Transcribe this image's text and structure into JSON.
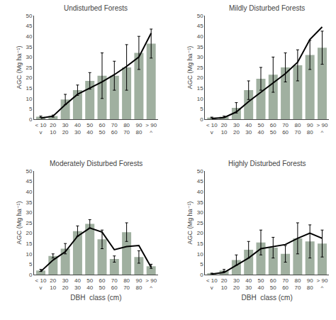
{
  "chart_data": [
    {
      "type": "bar",
      "title": "Undisturbed Forests",
      "categories": [
        "< 10\nv",
        "20\n10",
        "30\n20",
        "40\n30",
        "50\n40",
        "60\n50",
        "70\n60",
        "80\n70",
        "90\n80",
        "> 90\n^"
      ],
      "series": [
        {
          "type": "bar",
          "color": "#a0b0a0",
          "values": [
            1.2,
            1.5,
            9.5,
            14.0,
            18.5,
            21.0,
            21.0,
            25.0,
            32.0,
            36.5
          ],
          "errors": [
            0.3,
            0.5,
            2.5,
            2.5,
            4.0,
            11.0,
            7.0,
            11.0,
            8.0,
            7.0
          ]
        },
        {
          "type": "line",
          "color": "black",
          "values": [
            0.5,
            1.5,
            7.0,
            12.0,
            15.0,
            18.0,
            21.5,
            25.5,
            30.0,
            41.5
          ]
        }
      ],
      "ylabel": "AGC (Mg ha⁻¹)",
      "ylim": [
        0,
        50
      ],
      "yticks": [
        0,
        5,
        10,
        15,
        20,
        25,
        30,
        35,
        40,
        45,
        50
      ],
      "grid": false
    },
    {
      "type": "bar",
      "title": "Mildly Disturbed Forests",
      "categories": [
        "< 10\nv",
        "20\n10",
        "30\n20",
        "40\n30",
        "50\n40",
        "60\n50",
        "70\n60",
        "80\n70",
        "90\n80",
        "> 90\n^"
      ],
      "series": [
        {
          "type": "bar",
          "color": "#a0b0a0",
          "values": [
            0.8,
            1.2,
            5.5,
            14.0,
            19.5,
            21.5,
            25.0,
            26.0,
            31.0,
            34.5
          ],
          "errors": [
            0.2,
            0.3,
            2.5,
            4.5,
            5.5,
            8.5,
            7.0,
            7.5,
            7.0,
            8.0
          ]
        },
        {
          "type": "line",
          "color": "black",
          "values": [
            0.3,
            0.8,
            3.5,
            8.5,
            13.0,
            17.5,
            22.0,
            27.5,
            38.5,
            44.5
          ]
        }
      ],
      "ylabel": "AGC (Mg ha⁻¹)",
      "ylim": [
        0,
        50
      ],
      "yticks": [
        0,
        5,
        10,
        15,
        20,
        25,
        30,
        35,
        40,
        45,
        50
      ],
      "grid": false
    },
    {
      "type": "bar",
      "title": "Moderately Disturbed Forests",
      "categories": [
        "< 10\nv",
        "20\n10",
        "30\n20",
        "40\n30",
        "50\n40",
        "60\n50",
        "70\n60",
        "80\n70",
        "90\n80",
        "> 90\n^"
      ],
      "series": [
        {
          "type": "bar",
          "color": "#a0b0a0",
          "values": [
            2.0,
            9.0,
            12.5,
            21.0,
            24.5,
            17.0,
            7.5,
            20.5,
            8.5,
            4.0
          ],
          "errors": [
            0.5,
            1.0,
            2.5,
            2.5,
            2.0,
            4.5,
            1.5,
            4.5,
            3.0,
            1.0
          ]
        },
        {
          "type": "line",
          "color": "black",
          "values": [
            1.5,
            7.0,
            11.0,
            18.5,
            22.5,
            20.5,
            12.0,
            13.5,
            14.0,
            3.5
          ]
        }
      ],
      "ylabel": "AGC (Mg ha⁻¹)",
      "xlabel": "DBH  class (cm)",
      "ylim": [
        0,
        50
      ],
      "yticks": [
        0,
        5,
        10,
        15,
        20,
        25,
        30,
        35,
        40,
        45,
        50
      ],
      "grid": false
    },
    {
      "type": "bar",
      "title": "Highly Disturbed Forests",
      "categories": [
        "< 10\nv",
        "20\n10",
        "30\n20",
        "40\n30",
        "50\n40",
        "60\n50",
        "70\n60",
        "80\n70",
        "90\n80",
        "> 90\n^"
      ],
      "series": [
        {
          "type": "bar",
          "color": "#a0b0a0",
          "values": [
            0.5,
            2.0,
            7.0,
            12.0,
            15.5,
            13.0,
            10.0,
            17.5,
            16.0,
            15.0
          ],
          "errors": [
            0.2,
            0.5,
            2.5,
            4.0,
            6.0,
            5.0,
            4.0,
            7.5,
            8.0,
            6.5
          ]
        },
        {
          "type": "line",
          "color": "black",
          "values": [
            0.3,
            1.0,
            4.5,
            8.0,
            12.5,
            13.5,
            14.5,
            17.5,
            20.0,
            17.5
          ]
        }
      ],
      "ylabel": "AGC (Mg ha⁻¹)",
      "xlabel": "DBH  class (cm)",
      "ylim": [
        0,
        50
      ],
      "yticks": [
        0,
        5,
        10,
        15,
        20,
        25,
        30,
        35,
        40,
        45,
        50
      ],
      "grid": false
    }
  ]
}
